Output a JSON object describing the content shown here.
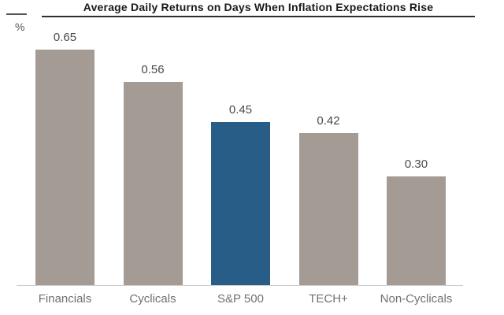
{
  "chart_data": {
    "type": "bar",
    "title": "Average Daily Returns on Days When Inflation Expectations Rise",
    "ylabel": "%",
    "categories": [
      "Financials",
      "Cyclicals",
      "S&P 500",
      "TECH+",
      "Non-Cyclicals"
    ],
    "values": [
      0.65,
      0.56,
      0.45,
      0.42,
      0.3
    ],
    "value_labels": [
      "0.65",
      "0.56",
      "0.45",
      "0.42",
      "0.30"
    ],
    "highlighted_category": "S&P 500",
    "bar_colors": [
      "#a49c94",
      "#a49c94",
      "#275d87",
      "#a49c94",
      "#a49c94"
    ],
    "colors": {
      "bar_default": "#a49c94",
      "bar_highlight": "#275d87",
      "axis_line": "#cccccc",
      "title_underline": "#2e2e2e",
      "value_label": "#4a4a4a",
      "category_label": "#707070",
      "y_unit_label": "#555555"
    },
    "ylim": [
      0,
      0.75
    ],
    "grid": false,
    "legend": false
  }
}
